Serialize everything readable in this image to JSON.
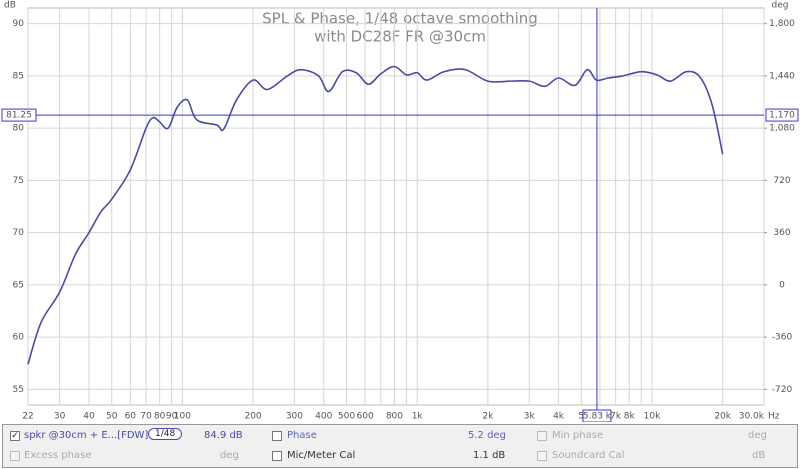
{
  "chart_data": {
    "type": "line",
    "title": "SPL & Phase, 1/48 octave smoothing",
    "subtitle": "with DC28F FR @30cm",
    "y_unit": "dB",
    "y2_unit": "deg",
    "x_unit": "Hz",
    "log_x": true,
    "grid": true,
    "xlim": [
      22,
      30000
    ],
    "ylim": [
      53.5,
      91.5
    ],
    "y2lim": [
      -828,
      1908
    ],
    "xticks": [
      22,
      30,
      40,
      50,
      60,
      70,
      80,
      90,
      100,
      200,
      300,
      400,
      500,
      600,
      800,
      {
        "value": 1000,
        "label": "1k"
      },
      {
        "value": 2000,
        "label": "2k"
      },
      {
        "value": 3000,
        "label": "3k"
      },
      {
        "value": 4000,
        "label": "4k"
      },
      {
        "value": 5000,
        "label": "5"
      },
      {
        "value": 7000,
        "label": "7k"
      },
      {
        "value": 8000,
        "label": "8k"
      },
      {
        "value": 10000,
        "label": "10k"
      },
      {
        "value": 20000,
        "label": "20k"
      },
      {
        "value": 30000,
        "label": "30.0k"
      }
    ],
    "xgrid_minor": [
      700,
      900,
      6000,
      9000
    ],
    "yticks": [
      55,
      60,
      65,
      70,
      75,
      80,
      85,
      90
    ],
    "y2ticks": [
      -720,
      -360,
      0,
      360,
      720,
      {
        "value": 1080,
        "label": "1,080"
      },
      {
        "value": 1440,
        "label": "1,440"
      },
      {
        "value": 1800,
        "label": "1,800"
      }
    ],
    "cursor": {
      "y": 81.25,
      "y_label": "81.25",
      "y2_label": "1,170",
      "x": 5830,
      "x_label": "5.83 k",
      "color": "#3838d0"
    },
    "series": [
      {
        "name": "spkr @30cm + E...[FDW]",
        "color": "#4b4aa6",
        "x": [
          22,
          25,
          30,
          35,
          40,
          45,
          50,
          60,
          70,
          75,
          80,
          87,
          95,
          105,
          115,
          140,
          150,
          170,
          200,
          230,
          280,
          320,
          380,
          420,
          480,
          550,
          620,
          700,
          800,
          900,
          1000,
          1100,
          1300,
          1600,
          2000,
          2500,
          3000,
          3500,
          4000,
          4700,
          5300,
          5800,
          6500,
          7500,
          9000,
          10500,
          12000,
          14000,
          16000,
          18000,
          20000
        ],
        "values": [
          57.4,
          61.4,
          64.3,
          67.9,
          70,
          72,
          73.2,
          76,
          80,
          81,
          80.6,
          80,
          82,
          82.7,
          80.8,
          80.3,
          79.9,
          82.7,
          84.6,
          83.7,
          85,
          85.6,
          85,
          83.5,
          85.4,
          85.3,
          84.2,
          85.2,
          85.9,
          85.1,
          85.3,
          84.6,
          85.4,
          85.6,
          84.5,
          84.5,
          84.5,
          84,
          84.8,
          84.1,
          85.6,
          84.6,
          84.8,
          85,
          85.4,
          85.1,
          84.5,
          85.4,
          84.9,
          82.3,
          77.5
        ]
      }
    ]
  },
  "legend": {
    "trace": "spkr @30cm + E...[FDW]",
    "smoothing": "1/48",
    "spl": "84.9 dB",
    "phase": "Phase",
    "phase_value": "5.2 deg",
    "min_phase": "Min phase",
    "min_phase_unit": "deg",
    "excess_phase": "Excess phase",
    "excess_phase_unit": "deg",
    "mic_cal": "Mic/Meter Cal",
    "mic_cal_value": "1.1 dB",
    "soundcard_cal": "Soundcard Cal",
    "soundcard_cal_unit": "dB"
  }
}
